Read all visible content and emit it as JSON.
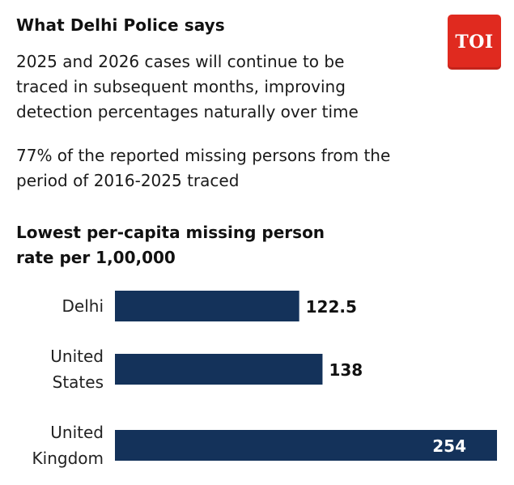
{
  "header": {
    "title": "What Delhi Police says",
    "logo_text": "TOI",
    "logo_color": "#e02a1f"
  },
  "paragraphs": [
    [
      "2025 and 2026 cases will continue to be",
      "traced in subsequent months, improving",
      "detection percentages naturally over time"
    ],
    [
      "77% of the reported missing persons from the",
      "period of 2016-2025 traced"
    ]
  ],
  "chart_data": {
    "type": "bar",
    "orientation": "horizontal",
    "title": "Lowest per-capita missing person rate per 1,00,000",
    "title_lines": [
      "Lowest per-capita missing person",
      "rate per 1,00,000"
    ],
    "categories": [
      [
        "Delhi"
      ],
      [
        "United",
        "States"
      ],
      [
        "United",
        "Kingdom"
      ]
    ],
    "values": [
      122.5,
      138,
      254
    ],
    "value_labels": [
      "122.5",
      "138",
      "254"
    ],
    "xlim": [
      0,
      254
    ],
    "bar_color": "#14325a",
    "grid": false,
    "legend": "none"
  }
}
